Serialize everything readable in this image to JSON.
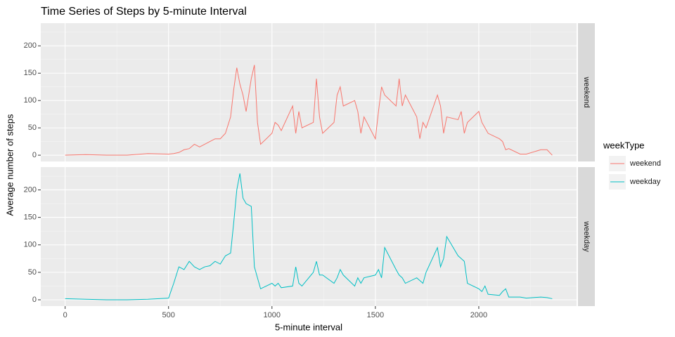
{
  "chart_data": {
    "type": "line",
    "title": "Time Series of Steps by 5-minute Interval",
    "x_label": "5-minute interval",
    "y_label": "Average number of steps",
    "legend_title": "weekType",
    "x": [
      0,
      100,
      200,
      300,
      400,
      500,
      525,
      550,
      575,
      600,
      625,
      650,
      675,
      700,
      725,
      750,
      775,
      800,
      815,
      830,
      845,
      860,
      875,
      900,
      915,
      930,
      945,
      1000,
      1015,
      1030,
      1045,
      1100,
      1115,
      1130,
      1145,
      1200,
      1215,
      1230,
      1245,
      1300,
      1315,
      1330,
      1345,
      1400,
      1415,
      1430,
      1445,
      1500,
      1515,
      1530,
      1545,
      1600,
      1615,
      1630,
      1645,
      1700,
      1715,
      1730,
      1745,
      1800,
      1815,
      1830,
      1845,
      1900,
      1915,
      1930,
      1945,
      2000,
      2015,
      2030,
      2045,
      2100,
      2115,
      2130,
      2145,
      2200,
      2230,
      2300,
      2330,
      2355
    ],
    "series": [
      {
        "name": "weekend",
        "color": "#F8766D",
        "values": [
          0,
          1,
          0,
          0,
          3,
          2,
          3,
          5,
          10,
          12,
          20,
          15,
          20,
          25,
          30,
          30,
          40,
          70,
          120,
          160,
          130,
          110,
          80,
          140,
          165,
          60,
          20,
          40,
          60,
          55,
          45,
          90,
          40,
          80,
          50,
          60,
          140,
          70,
          40,
          60,
          110,
          125,
          90,
          100,
          80,
          40,
          70,
          30,
          80,
          125,
          110,
          90,
          140,
          90,
          110,
          70,
          30,
          60,
          50,
          110,
          90,
          40,
          70,
          65,
          80,
          40,
          60,
          80,
          60,
          50,
          40,
          30,
          25,
          10,
          12,
          2,
          2,
          10,
          10,
          0
        ]
      },
      {
        "name": "weekday",
        "color": "#00BFC4",
        "values": [
          2,
          1,
          0,
          0,
          1,
          3,
          30,
          60,
          55,
          70,
          60,
          55,
          60,
          62,
          70,
          65,
          80,
          85,
          140,
          200,
          230,
          185,
          175,
          170,
          60,
          40,
          20,
          30,
          25,
          30,
          22,
          25,
          60,
          30,
          25,
          50,
          70,
          45,
          45,
          30,
          40,
          55,
          45,
          25,
          40,
          30,
          40,
          45,
          55,
          40,
          95,
          55,
          45,
          40,
          30,
          40,
          35,
          30,
          50,
          95,
          60,
          75,
          115,
          80,
          75,
          70,
          30,
          20,
          15,
          25,
          10,
          8,
          15,
          20,
          5,
          5,
          3,
          5,
          4,
          2
        ]
      }
    ],
    "xlim": [
      -117.75,
      2472.75
    ],
    "xticks": [
      0,
      500,
      1000,
      1500,
      2000
    ],
    "xminor": [
      250,
      750,
      1250,
      1750,
      2250
    ],
    "ylim": [
      -11.5,
      241.5
    ],
    "yticks": [
      0,
      50,
      100,
      150,
      200
    ],
    "yminor": [
      25,
      75,
      125,
      175,
      225
    ],
    "grid": true,
    "legend": "right"
  }
}
